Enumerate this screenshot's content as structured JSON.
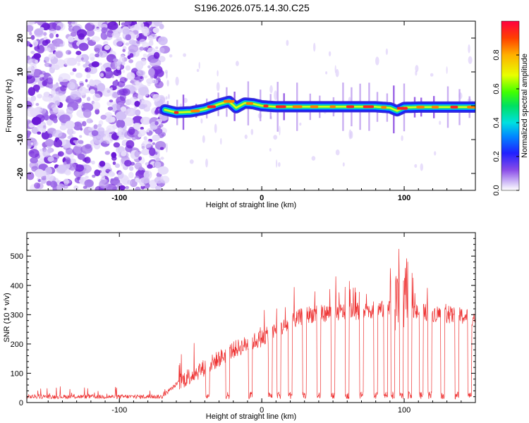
{
  "title": "S196.2026.075.14.30.C25",
  "chart_data": [
    {
      "type": "heatmap",
      "title": "S196.2026.075.14.30.C25",
      "xlabel": "Height of straight line (km)",
      "ylabel": "Frequency (Hz)",
      "xlim": [
        -165,
        150
      ],
      "ylim": [
        -25,
        25
      ],
      "xticks": [
        -100,
        0,
        100
      ],
      "yticks": [
        -20,
        -10,
        0,
        10,
        20
      ],
      "noise_region_end_km": -68,
      "ridge": {
        "x": [
          -68,
          -60,
          -50,
          -40,
          -30,
          -23,
          -18,
          -12,
          -6,
          0,
          10,
          20,
          40,
          60,
          80,
          90,
          95,
          100,
          110,
          130,
          150
        ],
        "y": [
          -1.2,
          -2.0,
          -1.8,
          -1.0,
          0.5,
          1.3,
          -0.6,
          0.8,
          0.6,
          0.0,
          -0.3,
          -0.3,
          -0.3,
          -0.3,
          -0.3,
          -0.6,
          -1.5,
          -0.5,
          -0.4,
          -0.4,
          -0.4
        ]
      },
      "colorbar": {
        "label": "Normalized spectral amplitude",
        "range": [
          0.0,
          1.0
        ],
        "ticks": [
          "0.0",
          "0.2",
          "0.4",
          "0.6",
          "0.8"
        ],
        "tick_values": [
          0.0,
          0.2,
          0.4,
          0.6,
          0.8
        ]
      }
    },
    {
      "type": "line",
      "xlabel": "Height of straight line (km)",
      "ylabel": "SNR (10 * v/v)",
      "xlim": [
        -165,
        150
      ],
      "ylim": [
        0,
        580
      ],
      "xticks": [
        -100,
        0,
        100
      ],
      "yticks": [
        0,
        100,
        200,
        300,
        400,
        500
      ],
      "series": [
        {
          "name": "SNR",
          "color": "#ee3333",
          "baseline": {
            "x": [
              -165,
              -100,
              -70,
              -58,
              -40,
              -20,
              0,
              20,
              30,
              60,
              90,
              100,
              110,
              150
            ],
            "y": [
              20,
              20,
              20,
              70,
              120,
              180,
              220,
              270,
              300,
              310,
              320,
              300,
              310,
              290
            ]
          },
          "dropouts_km": [
            -38,
            -24,
            -8,
            6,
            12,
            20,
            30,
            40,
            50,
            60,
            70,
            80,
            87,
            92,
            98,
            104,
            112,
            118,
            127,
            137,
            146
          ]
        }
      ]
    }
  ]
}
